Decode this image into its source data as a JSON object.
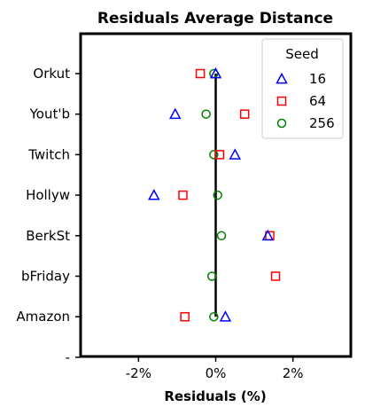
{
  "chart_data": {
    "type": "scatter",
    "title": "Residuals Average Distance",
    "xlabel": "Residuals (%)",
    "ylabel": "",
    "xlim": [
      -3.5,
      3.5
    ],
    "xticks": [
      -2,
      0,
      2
    ],
    "xtick_labels": [
      "-2%",
      "0%",
      "2%"
    ],
    "categories": [
      "Orkut",
      "Yout'b",
      "Twitch",
      "Hollyw",
      "BerkSt",
      "bFriday",
      "Amazon"
    ],
    "extra_ytick_label": "-",
    "legend": {
      "title": "Seed",
      "position": "top-right"
    },
    "reference_line_x": 0,
    "series": [
      {
        "name": "16",
        "marker": "triangle",
        "color": "#0000ff",
        "values": [
          0.0,
          -1.05,
          0.5,
          -1.6,
          1.35,
          null,
          0.25
        ]
      },
      {
        "name": "64",
        "marker": "square",
        "color": "#ff0000",
        "values": [
          -0.4,
          0.75,
          0.1,
          -0.85,
          1.4,
          1.55,
          -0.8
        ]
      },
      {
        "name": "256",
        "marker": "circle",
        "color": "#008000",
        "values": [
          -0.05,
          -0.25,
          -0.05,
          0.05,
          0.15,
          -0.1,
          -0.05
        ]
      }
    ]
  }
}
